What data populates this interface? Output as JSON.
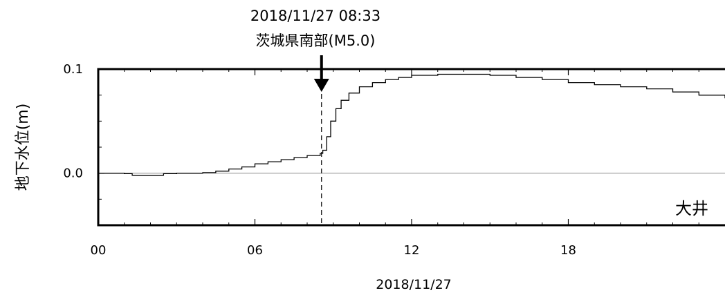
{
  "chart_data": {
    "type": "line",
    "event": {
      "datetime": "2018/11/27 08:33",
      "name": "茨城県南部(M5.0)",
      "x_hour": 8.55
    },
    "ylabel": "地下水位(m)",
    "xlabel": "2018/11/27",
    "station": "大井",
    "x_ticks": [
      {
        "value": 0,
        "label": "00"
      },
      {
        "value": 6,
        "label": "06"
      },
      {
        "value": 12,
        "label": "12"
      },
      {
        "value": 18,
        "label": "18"
      }
    ],
    "y_ticks": [
      {
        "value": 0.0,
        "label": "0.0"
      },
      {
        "value": 0.1,
        "label": "0.1"
      }
    ],
    "xlim": [
      0,
      24
    ],
    "ylim": [
      -0.05,
      0.1
    ],
    "reference_line_y": 0.0,
    "series": [
      {
        "x": [
          0,
          0.5,
          1.0,
          1.3,
          2.0,
          2.5,
          3.0,
          3.5,
          4.0,
          4.5,
          5.0,
          5.5,
          6.0,
          6.5,
          7.0,
          7.5,
          8.0,
          8.5,
          8.6,
          8.75,
          8.9,
          9.1,
          9.3,
          9.6,
          10.0,
          10.5,
          11.0,
          11.5,
          12.0,
          13.0,
          14.0,
          15.0,
          16.0,
          17.0,
          18.0,
          19.0,
          20.0,
          21.0,
          22.0,
          23.0,
          24.0
        ],
        "y": [
          0.0,
          0.0,
          -0.0005,
          -0.002,
          -0.002,
          -0.0005,
          0.0,
          0.0,
          0.0005,
          0.002,
          0.004,
          0.006,
          0.009,
          0.011,
          0.013,
          0.015,
          0.017,
          0.019,
          0.022,
          0.035,
          0.05,
          0.062,
          0.07,
          0.077,
          0.083,
          0.087,
          0.09,
          0.092,
          0.094,
          0.095,
          0.095,
          0.094,
          0.092,
          0.09,
          0.087,
          0.085,
          0.083,
          0.081,
          0.078,
          0.075,
          0.072
        ]
      }
    ]
  }
}
